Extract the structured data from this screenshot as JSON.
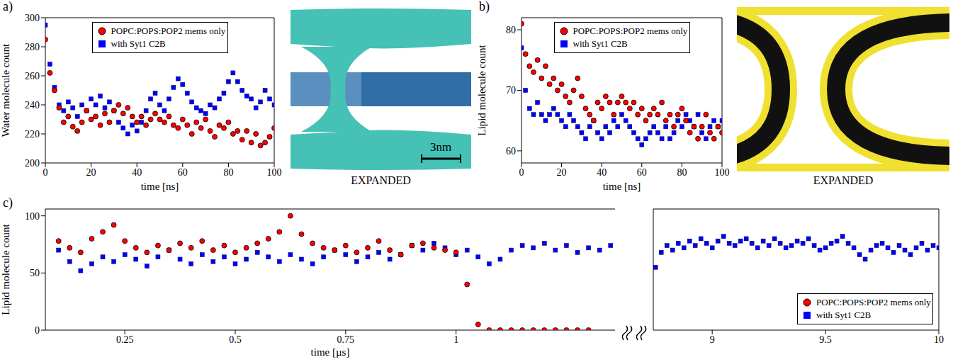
{
  "panel_labels": [
    "a)",
    "b)",
    "c)"
  ],
  "images": [
    {
      "caption": "EXPANDED",
      "scale_bar": "3nm"
    },
    {
      "caption": "EXPANDED"
    }
  ],
  "chart_data": [
    {
      "type": "scatter",
      "x_label": "time [ns]",
      "y_label": "Water molecule count",
      "xlim": [
        0,
        100
      ],
      "xticks": [
        0,
        20,
        40,
        60,
        80,
        100
      ],
      "ylim": [
        200,
        300
      ],
      "yticks": [
        200,
        220,
        240,
        260,
        280,
        300
      ],
      "legend": "upper center",
      "grid": false,
      "x": [
        0,
        2,
        4,
        6,
        8,
        10,
        12,
        14,
        16,
        18,
        20,
        22,
        24,
        26,
        28,
        30,
        32,
        34,
        36,
        38,
        40,
        42,
        44,
        46,
        48,
        50,
        52,
        54,
        56,
        58,
        60,
        62,
        64,
        66,
        68,
        70,
        72,
        74,
        76,
        78,
        80,
        82,
        84,
        86,
        88,
        90,
        92,
        94,
        96,
        98,
        100
      ],
      "series": [
        {
          "name": "POPC:POPS:POP2 mems only",
          "color": "#ff0000",
          "marker": "circle",
          "values": [
            285,
            262,
            250,
            238,
            228,
            232,
            225,
            222,
            228,
            236,
            230,
            232,
            226,
            234,
            228,
            236,
            240,
            234,
            238,
            232,
            228,
            232,
            226,
            230,
            234,
            230,
            228,
            232,
            226,
            224,
            230,
            226,
            220,
            228,
            224,
            230,
            222,
            218,
            226,
            224,
            228,
            220,
            222,
            216,
            222,
            214,
            220,
            212,
            214,
            218,
            224
          ]
        },
        {
          "name": "with Syt1 C2B",
          "color": "#0000ff",
          "marker": "square",
          "values": [
            295,
            268,
            252,
            240,
            236,
            242,
            238,
            232,
            240,
            236,
            244,
            240,
            246,
            238,
            242,
            236,
            228,
            224,
            220,
            226,
            222,
            228,
            236,
            244,
            248,
            240,
            236,
            244,
            252,
            258,
            254,
            248,
            242,
            238,
            236,
            234,
            240,
            238,
            244,
            248,
            256,
            262,
            256,
            250,
            246,
            244,
            238,
            242,
            250,
            244,
            240
          ]
        }
      ]
    },
    {
      "type": "scatter",
      "x_label": "time [ns]",
      "y_label": "Lipid molecule count",
      "xlim": [
        0,
        100
      ],
      "xticks": [
        0,
        20,
        40,
        60,
        80,
        100
      ],
      "ylim": [
        58,
        82
      ],
      "yticks": [
        60,
        70,
        80
      ],
      "legend": "upper center",
      "grid": false,
      "x": [
        0,
        2,
        4,
        6,
        8,
        10,
        12,
        14,
        16,
        18,
        20,
        22,
        24,
        26,
        28,
        30,
        32,
        34,
        36,
        38,
        40,
        42,
        44,
        46,
        48,
        50,
        52,
        54,
        56,
        58,
        60,
        62,
        64,
        66,
        68,
        70,
        72,
        74,
        76,
        78,
        80,
        82,
        84,
        86,
        88,
        90,
        92,
        94,
        96,
        98,
        100
      ],
      "series": [
        {
          "name": "POPC:POPS:POP2 mems only",
          "color": "#ff0000",
          "marker": "circle",
          "values": [
            81,
            76,
            74,
            73,
            75,
            72,
            74,
            71,
            72,
            70,
            71,
            69,
            68,
            70,
            72,
            69,
            67,
            66,
            65,
            68,
            67,
            69,
            68,
            66,
            68,
            69,
            68,
            67,
            68,
            66,
            67,
            65,
            66,
            67,
            66,
            68,
            65,
            66,
            64,
            66,
            67,
            65,
            63,
            64,
            62,
            64,
            66,
            63,
            62,
            64,
            63
          ]
        },
        {
          "name": "with Syt1 C2B",
          "color": "#0000ff",
          "marker": "square",
          "values": [
            77,
            70,
            67,
            66,
            68,
            66,
            65,
            66,
            67,
            66,
            65,
            64,
            66,
            65,
            64,
            63,
            62,
            64,
            65,
            63,
            62,
            64,
            63,
            65,
            64,
            66,
            65,
            64,
            63,
            62,
            61,
            62,
            63,
            64,
            63,
            62,
            64,
            62,
            63,
            65,
            64,
            66,
            65,
            64,
            66,
            63,
            62,
            64,
            65,
            64,
            65
          ]
        }
      ]
    },
    {
      "type": "scatter",
      "x_label": "time [µs]",
      "y_label": "Lipid molecule count",
      "xlim": [
        0.07,
        1.36
      ],
      "xticks": [
        0.25,
        0.5,
        0.75,
        1
      ],
      "ylim": [
        0,
        106
      ],
      "yticks": [
        0,
        50,
        100
      ],
      "grid": false,
      "x": [
        0.1,
        0.125,
        0.15,
        0.175,
        0.2,
        0.225,
        0.25,
        0.275,
        0.3,
        0.325,
        0.35,
        0.375,
        0.4,
        0.425,
        0.45,
        0.475,
        0.5,
        0.525,
        0.55,
        0.575,
        0.6,
        0.625,
        0.65,
        0.675,
        0.7,
        0.725,
        0.75,
        0.775,
        0.8,
        0.825,
        0.85,
        0.875,
        0.9,
        0.925,
        0.95,
        0.975,
        1.0,
        1.025,
        1.05,
        1.075,
        1.1,
        1.125,
        1.15,
        1.175,
        1.2,
        1.225,
        1.25,
        1.275,
        1.3,
        1.325,
        1.35
      ],
      "series": [
        {
          "name": "POPC:POPS:POP2 mems only",
          "color": "#ff0000",
          "marker": "circle",
          "values": [
            78,
            72,
            68,
            80,
            86,
            92,
            78,
            72,
            68,
            74,
            70,
            76,
            72,
            78,
            70,
            74,
            68,
            72,
            76,
            80,
            86,
            100,
            84,
            76,
            72,
            70,
            74,
            68,
            72,
            78,
            70,
            66,
            74,
            76,
            72,
            70,
            68,
            40,
            5,
            0,
            0,
            0,
            0,
            0,
            0,
            0,
            0,
            0,
            0,
            null,
            null
          ]
        },
        {
          "name": "with Syt1 C2B",
          "color": "#0000ff",
          "marker": "square",
          "values": [
            70,
            60,
            52,
            58,
            64,
            60,
            66,
            62,
            56,
            64,
            70,
            62,
            58,
            66,
            60,
            64,
            58,
            62,
            68,
            64,
            60,
            66,
            62,
            58,
            64,
            70,
            66,
            60,
            64,
            68,
            62,
            66,
            74,
            70,
            76,
            72,
            66,
            70,
            64,
            58,
            62,
            70,
            74,
            72,
            76,
            70,
            74,
            68,
            72,
            70,
            74
          ]
        }
      ]
    },
    {
      "type": "scatter",
      "tick_labels": "x",
      "xlim": [
        8.74,
        10
      ],
      "xticks": [
        9,
        9.5,
        10
      ],
      "ylim": [
        0,
        106
      ],
      "legend": "lower right",
      "grid": false,
      "x": [
        8.75,
        8.775,
        8.8,
        8.825,
        8.85,
        8.875,
        8.9,
        8.925,
        8.95,
        8.975,
        9.0,
        9.025,
        9.05,
        9.075,
        9.1,
        9.125,
        9.15,
        9.175,
        9.2,
        9.225,
        9.25,
        9.275,
        9.3,
        9.325,
        9.35,
        9.375,
        9.4,
        9.425,
        9.45,
        9.475,
        9.5,
        9.525,
        9.55,
        9.575,
        9.6,
        9.625,
        9.65,
        9.675,
        9.7,
        9.725,
        9.75,
        9.775,
        9.8,
        9.825,
        9.85,
        9.875,
        9.9,
        9.925,
        9.95,
        9.975,
        10
      ],
      "series": [
        {
          "name": "POPC:POPS:POP2 mems only",
          "color": "#ff0000",
          "marker": "circle",
          "values": [
            null,
            null,
            null,
            null,
            null,
            null,
            null,
            null,
            null,
            null,
            null,
            null,
            null,
            null,
            null,
            null,
            null,
            null,
            null,
            null,
            null,
            null,
            null,
            null,
            null,
            null,
            null,
            null,
            null,
            null,
            null,
            null,
            null,
            null,
            null,
            null,
            null,
            null,
            null,
            null,
            null,
            null,
            null,
            null,
            null,
            null,
            null,
            null,
            null,
            null,
            null
          ]
        },
        {
          "name": "with Syt1 C2B",
          "color": "#0000ff",
          "marker": "square",
          "values": [
            55,
            68,
            74,
            70,
            76,
            72,
            78,
            74,
            80,
            76,
            72,
            78,
            82,
            76,
            74,
            78,
            80,
            76,
            72,
            78,
            74,
            80,
            76,
            72,
            74,
            78,
            76,
            80,
            74,
            70,
            72,
            76,
            78,
            82,
            76,
            72,
            66,
            62,
            70,
            74,
            76,
            72,
            68,
            74,
            70,
            66,
            72,
            76,
            70,
            74,
            72
          ]
        }
      ]
    }
  ]
}
